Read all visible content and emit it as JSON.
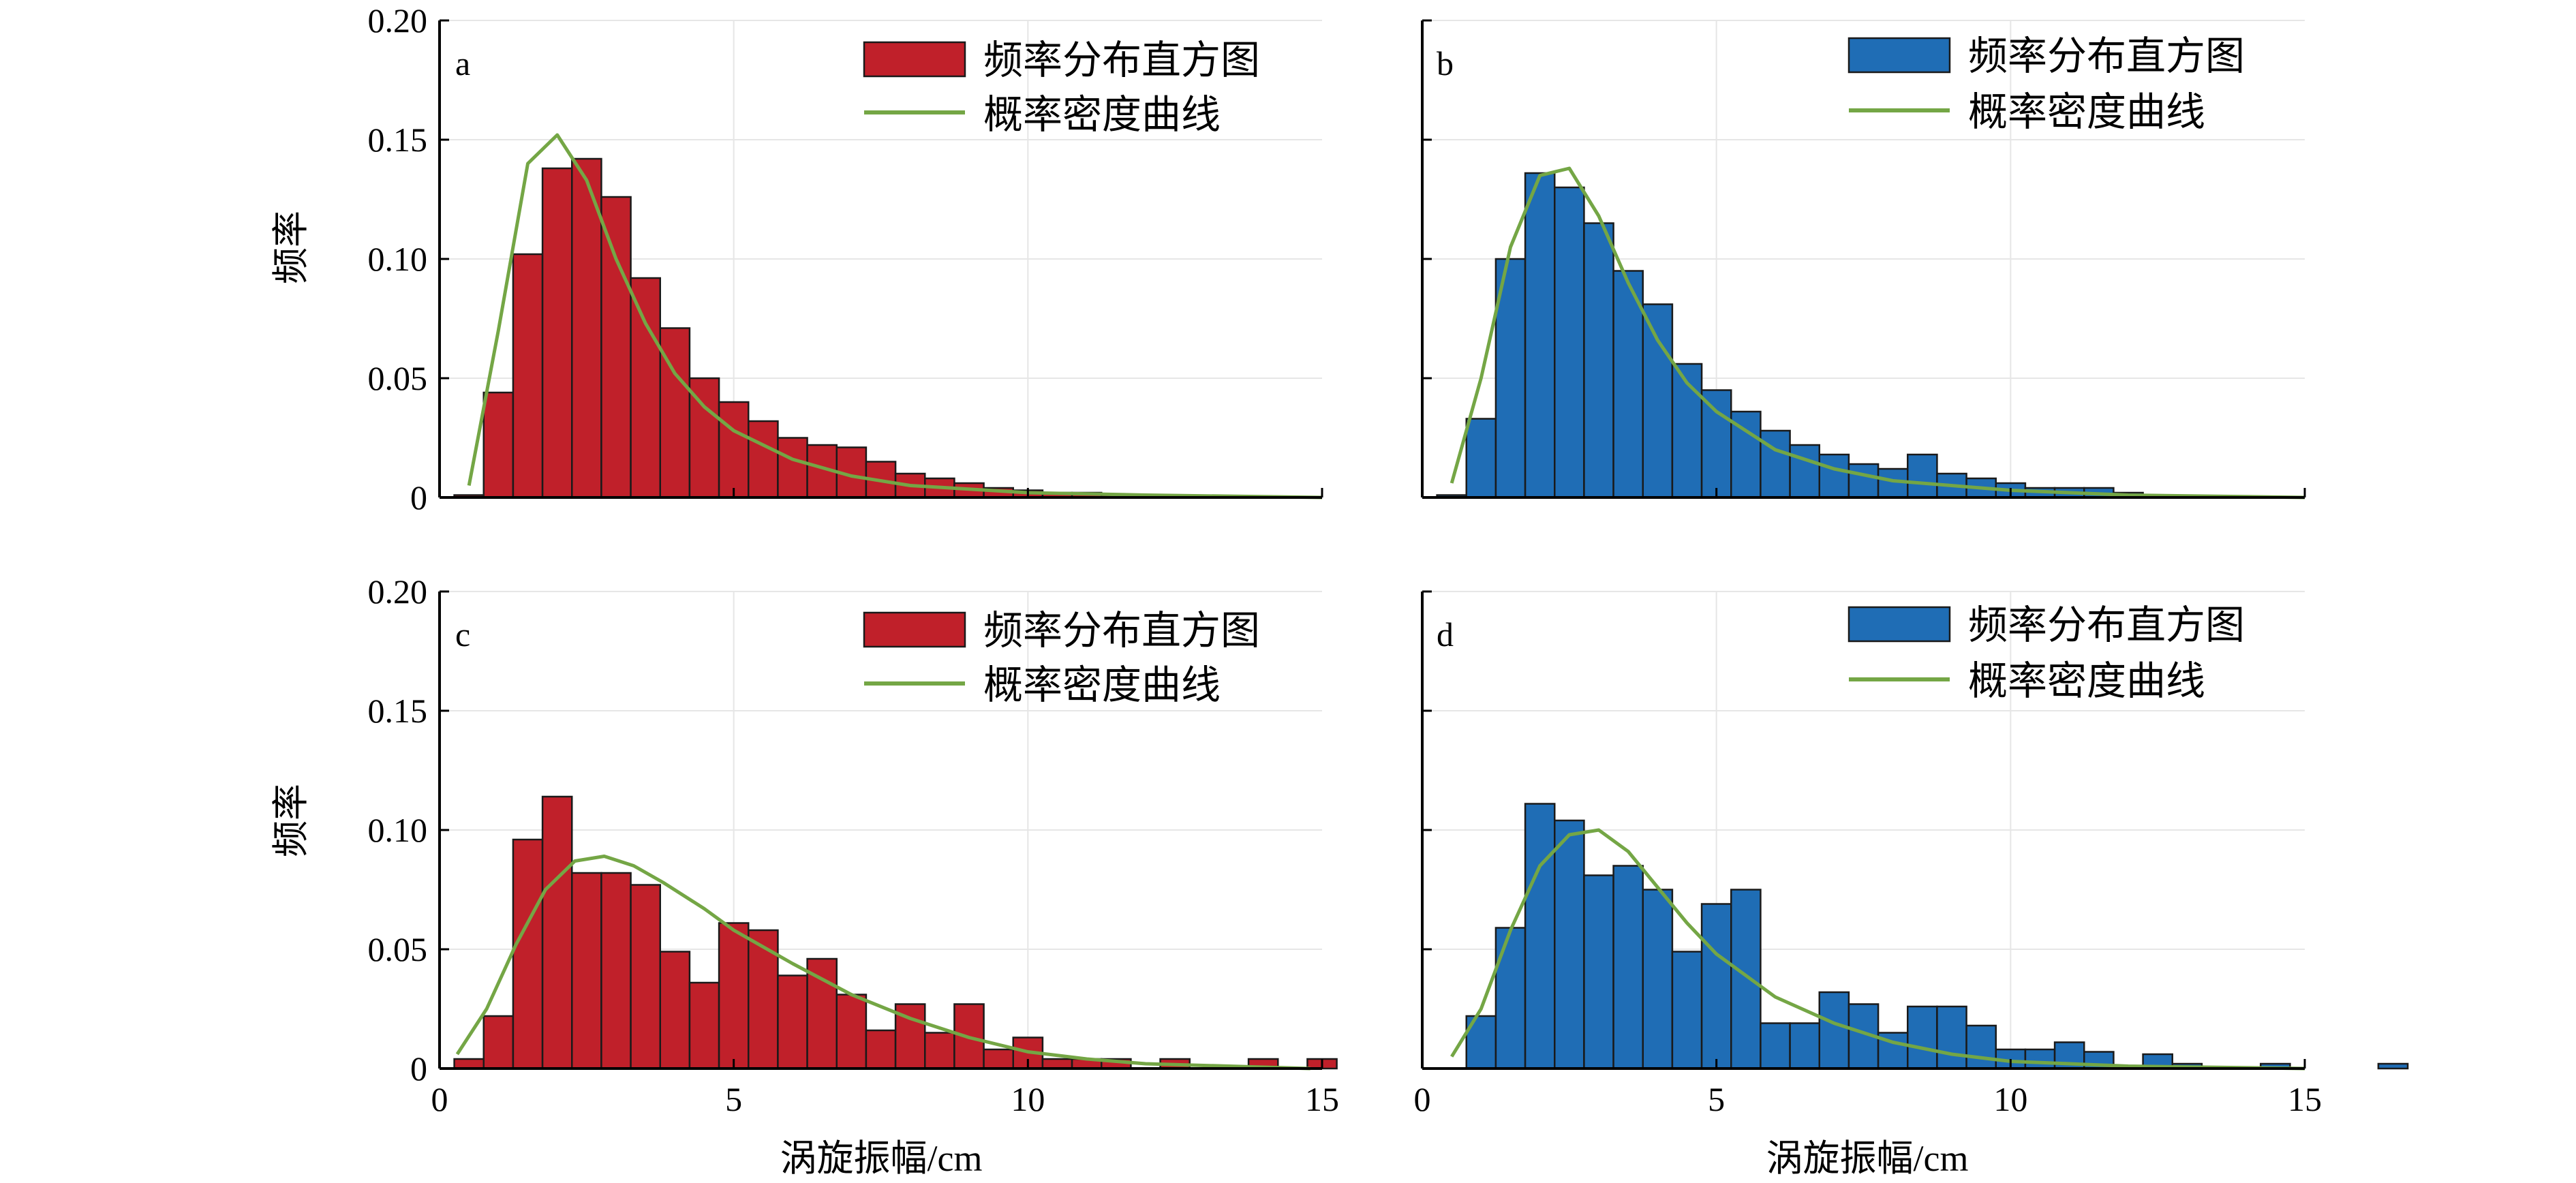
{
  "figure": {
    "xlabel": "涡旋振幅/cm",
    "ylabel": "频率"
  },
  "legend": {
    "hist_label": "频率分布直方图",
    "pdf_label": "概率密度曲线"
  },
  "colors": {
    "red": "#C0202A",
    "blue": "#1F6DB5",
    "green": "#74A645",
    "edge": "#1A1A1A",
    "grid": "#E6E6E6"
  },
  "chart_data": [
    {
      "type": "bar",
      "panel": "a",
      "color": "red",
      "xlim": [
        0,
        15
      ],
      "ylim": [
        0,
        0.2
      ],
      "xticks": [
        "0",
        "5",
        "10",
        "15"
      ],
      "yticks": [
        "0",
        "0.05",
        "0.10",
        "0.15",
        "0.20"
      ],
      "bin_start": 0.25,
      "bin_width": 0.5,
      "values": [
        0.001,
        0.044,
        0.102,
        0.138,
        0.142,
        0.126,
        0.092,
        0.071,
        0.05,
        0.04,
        0.032,
        0.025,
        0.022,
        0.021,
        0.015,
        0.01,
        0.008,
        0.006,
        0.004,
        0.003,
        0.002,
        0.002,
        0.001,
        0.001
      ],
      "pdf": {
        "x": [
          0.5,
          1.0,
          1.5,
          2.0,
          2.5,
          3.0,
          3.5,
          4.0,
          4.5,
          5.0,
          6.0,
          7.0,
          8.0,
          10.0,
          12.0,
          15.0
        ],
        "y": [
          0.005,
          0.07,
          0.14,
          0.152,
          0.133,
          0.1,
          0.073,
          0.052,
          0.038,
          0.028,
          0.016,
          0.009,
          0.005,
          0.002,
          0.001,
          0.0
        ]
      }
    },
    {
      "type": "bar",
      "panel": "b",
      "color": "blue",
      "xlim": [
        0,
        15
      ],
      "ylim": [
        0,
        0.2
      ],
      "xticks": [
        "0",
        "5",
        "10",
        "15"
      ],
      "yticks": [],
      "bin_start": 0.25,
      "bin_width": 0.5,
      "values": [
        0.001,
        0.033,
        0.1,
        0.136,
        0.13,
        0.115,
        0.095,
        0.081,
        0.056,
        0.045,
        0.036,
        0.028,
        0.022,
        0.018,
        0.014,
        0.012,
        0.018,
        0.01,
        0.008,
        0.006,
        0.004,
        0.004,
        0.004,
        0.002
      ],
      "pdf": {
        "x": [
          0.5,
          1.0,
          1.5,
          2.0,
          2.5,
          3.0,
          3.5,
          4.0,
          4.5,
          5.0,
          6.0,
          7.0,
          8.0,
          10.0,
          12.0,
          15.0
        ],
        "y": [
          0.006,
          0.05,
          0.105,
          0.135,
          0.138,
          0.118,
          0.09,
          0.066,
          0.048,
          0.036,
          0.02,
          0.012,
          0.007,
          0.003,
          0.001,
          0.0
        ]
      }
    },
    {
      "type": "bar",
      "panel": "c",
      "color": "red",
      "xlim": [
        0,
        15
      ],
      "ylim": [
        0,
        0.2
      ],
      "xticks": [
        "0",
        "5",
        "10",
        "15"
      ],
      "yticks": [
        "0",
        "0.05",
        "0.10",
        "0.15",
        "0.20"
      ],
      "bin_start": 0.25,
      "bin_width": 0.5,
      "values": [
        0.004,
        0.022,
        0.096,
        0.114,
        0.082,
        0.082,
        0.077,
        0.049,
        0.036,
        0.061,
        0.058,
        0.039,
        0.046,
        0.031,
        0.016,
        0.027,
        0.015,
        0.027,
        0.008,
        0.013,
        0.004,
        0.004,
        0.004,
        0.0,
        0.004,
        0.0,
        0.0,
        0.004,
        0.0,
        0.004
      ],
      "pdf": {
        "x": [
          0.3,
          0.8,
          1.3,
          1.8,
          2.3,
          2.8,
          3.3,
          3.8,
          4.5,
          5.0,
          6.0,
          7.0,
          8.0,
          9.0,
          10.0,
          11.0,
          12.0,
          14.8
        ],
        "y": [
          0.006,
          0.025,
          0.052,
          0.075,
          0.087,
          0.089,
          0.085,
          0.078,
          0.067,
          0.058,
          0.044,
          0.031,
          0.021,
          0.013,
          0.007,
          0.004,
          0.002,
          0.0
        ]
      }
    },
    {
      "type": "bar",
      "panel": "d",
      "color": "blue",
      "xlim": [
        0,
        15
      ],
      "ylim": [
        0,
        0.2
      ],
      "xticks": [
        "0",
        "5",
        "10",
        "15"
      ],
      "yticks": [],
      "bin_start": 0.75,
      "bin_width": 0.5,
      "values": [
        0.022,
        0.059,
        0.111,
        0.104,
        0.081,
        0.085,
        0.075,
        0.049,
        0.069,
        0.075,
        0.019,
        0.019,
        0.032,
        0.027,
        0.015,
        0.026,
        0.026,
        0.018,
        0.008,
        0.008,
        0.011,
        0.007,
        0.0,
        0.006,
        0.002,
        0.0,
        0.0,
        0.002,
        0.0,
        0.0,
        0.0,
        0.002
      ],
      "pdf": {
        "x": [
          0.5,
          1.0,
          1.5,
          2.0,
          2.5,
          3.0,
          3.5,
          4.0,
          4.5,
          5.0,
          6.0,
          7.0,
          8.0,
          9.0,
          10.0,
          11.0,
          12.0,
          15.0
        ],
        "y": [
          0.005,
          0.025,
          0.058,
          0.085,
          0.098,
          0.1,
          0.091,
          0.076,
          0.061,
          0.048,
          0.03,
          0.019,
          0.011,
          0.006,
          0.003,
          0.002,
          0.001,
          0.0
        ]
      }
    }
  ]
}
